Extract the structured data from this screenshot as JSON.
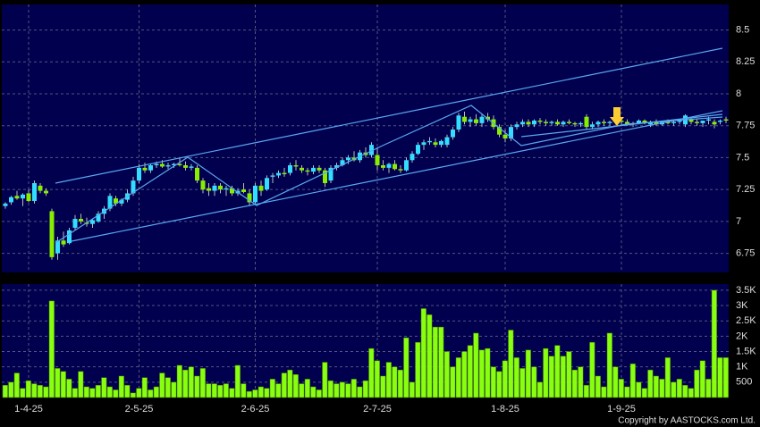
{
  "chart_data": {
    "type": "candlestick",
    "categories": [
      null,
      null,
      null,
      null,
      "1-4-25",
      null,
      null,
      null,
      null,
      null,
      null,
      null,
      null,
      null,
      null,
      null,
      null,
      null,
      null,
      null,
      null,
      null,
      null,
      "2-5-25",
      null,
      null,
      null,
      null,
      null,
      null,
      null,
      null,
      null,
      null,
      null,
      null,
      null,
      null,
      null,
      null,
      null,
      null,
      null,
      "2-6-25",
      null,
      null,
      null,
      null,
      null,
      null,
      null,
      null,
      null,
      null,
      null,
      null,
      null,
      null,
      null,
      null,
      null,
      null,
      null,
      null,
      "2-7-25",
      null,
      null,
      null,
      null,
      null,
      null,
      null,
      null,
      null,
      null,
      null,
      null,
      null,
      null,
      null,
      null,
      null,
      null,
      null,
      null,
      null,
      "1-8-25",
      null,
      null,
      null,
      null,
      null,
      null,
      null,
      null,
      null,
      null,
      null,
      null,
      null,
      null,
      null,
      null,
      null,
      null,
      null,
      "1-9-25",
      null,
      null,
      null,
      null,
      null,
      null,
      null,
      null,
      null,
      null,
      null,
      null,
      null,
      null,
      null,
      null,
      null,
      null
    ],
    "candles": [
      [
        7.12,
        7.15,
        7.1,
        7.14
      ],
      [
        7.15,
        7.2,
        7.13,
        7.19
      ],
      [
        7.2,
        7.24,
        7.17,
        7.18
      ],
      [
        7.18,
        7.22,
        7.12,
        7.21
      ],
      [
        7.22,
        7.25,
        7.15,
        7.16
      ],
      [
        7.16,
        7.32,
        7.14,
        7.3
      ],
      [
        7.28,
        7.3,
        7.22,
        7.24
      ],
      [
        7.24,
        7.26,
        7.2,
        7.22
      ],
      [
        7.08,
        7.1,
        6.7,
        6.72
      ],
      [
        6.75,
        6.88,
        6.7,
        6.85
      ],
      [
        6.85,
        6.92,
        6.8,
        6.82
      ],
      [
        6.83,
        6.95,
        6.82,
        6.93
      ],
      [
        6.95,
        7.05,
        6.93,
        7.02
      ],
      [
        7.02,
        7.06,
        6.98,
        7.0
      ],
      [
        6.99,
        7.03,
        6.96,
        6.98
      ],
      [
        6.98,
        7.02,
        6.95,
        7.01
      ],
      [
        7.0,
        7.08,
        6.99,
        7.06
      ],
      [
        7.06,
        7.12,
        7.02,
        7.1
      ],
      [
        7.1,
        7.22,
        7.08,
        7.2
      ],
      [
        7.18,
        7.2,
        7.12,
        7.14
      ],
      [
        7.14,
        7.18,
        7.12,
        7.17
      ],
      [
        7.17,
        7.25,
        7.15,
        7.22
      ],
      [
        7.22,
        7.35,
        7.2,
        7.32
      ],
      [
        7.32,
        7.45,
        7.3,
        7.42
      ],
      [
        7.42,
        7.46,
        7.38,
        7.4
      ],
      [
        7.4,
        7.45,
        7.38,
        7.44
      ],
      [
        7.44,
        7.47,
        7.42,
        7.45
      ],
      [
        7.45,
        7.48,
        7.42,
        7.43
      ],
      [
        7.43,
        7.46,
        7.41,
        7.44
      ],
      [
        7.44,
        7.46,
        7.42,
        7.45
      ],
      [
        7.45,
        7.5,
        7.43,
        7.44
      ],
      [
        7.44,
        7.47,
        7.4,
        7.42
      ],
      [
        7.42,
        7.45,
        7.4,
        7.43
      ],
      [
        7.42,
        7.44,
        7.3,
        7.32
      ],
      [
        7.32,
        7.34,
        7.22,
        7.25
      ],
      [
        7.26,
        7.3,
        7.2,
        7.24
      ],
      [
        7.24,
        7.3,
        7.2,
        7.28
      ],
      [
        7.28,
        7.3,
        7.22,
        7.25
      ],
      [
        7.25,
        7.28,
        7.2,
        7.26
      ],
      [
        7.26,
        7.28,
        7.2,
        7.22
      ],
      [
        7.22,
        7.26,
        7.2,
        7.24
      ],
      [
        7.25,
        7.3,
        7.22,
        7.23
      ],
      [
        7.22,
        7.25,
        7.12,
        7.15
      ],
      [
        7.15,
        7.3,
        7.14,
        7.28
      ],
      [
        7.28,
        7.32,
        7.2,
        7.24
      ],
      [
        7.25,
        7.36,
        7.24,
        7.34
      ],
      [
        7.35,
        7.38,
        7.3,
        7.36
      ],
      [
        7.36,
        7.4,
        7.34,
        7.38
      ],
      [
        7.38,
        7.42,
        7.35,
        7.37
      ],
      [
        7.38,
        7.46,
        7.36,
        7.44
      ],
      [
        7.44,
        7.48,
        7.4,
        7.43
      ],
      [
        7.42,
        7.44,
        7.38,
        7.4
      ],
      [
        7.4,
        7.42,
        7.36,
        7.39
      ],
      [
        7.39,
        7.44,
        7.37,
        7.42
      ],
      [
        7.42,
        7.44,
        7.38,
        7.4
      ],
      [
        7.4,
        7.42,
        7.27,
        7.3
      ],
      [
        7.32,
        7.44,
        7.3,
        7.42
      ],
      [
        7.42,
        7.46,
        7.4,
        7.44
      ],
      [
        7.44,
        7.5,
        7.43,
        7.48
      ],
      [
        7.48,
        7.52,
        7.45,
        7.5
      ],
      [
        7.5,
        7.55,
        7.47,
        7.48
      ],
      [
        7.48,
        7.56,
        7.46,
        7.54
      ],
      [
        7.54,
        7.58,
        7.5,
        7.52
      ],
      [
        7.52,
        7.62,
        7.5,
        7.6
      ],
      [
        7.52,
        7.58,
        7.4,
        7.44
      ],
      [
        7.44,
        7.48,
        7.4,
        7.42
      ],
      [
        7.42,
        7.46,
        7.38,
        7.45
      ],
      [
        7.45,
        7.48,
        7.4,
        7.41
      ],
      [
        7.41,
        7.44,
        7.38,
        7.4
      ],
      [
        7.4,
        7.5,
        7.39,
        7.48
      ],
      [
        7.48,
        7.55,
        7.46,
        7.53
      ],
      [
        7.53,
        7.62,
        7.52,
        7.6
      ],
      [
        7.6,
        7.64,
        7.56,
        7.62
      ],
      [
        7.62,
        7.66,
        7.6,
        7.63
      ],
      [
        7.62,
        7.65,
        7.58,
        7.6
      ],
      [
        7.6,
        7.64,
        7.58,
        7.63
      ],
      [
        7.6,
        7.68,
        7.58,
        7.66
      ],
      [
        7.66,
        7.74,
        7.64,
        7.72
      ],
      [
        7.72,
        7.85,
        7.7,
        7.83
      ],
      [
        7.82,
        7.86,
        7.76,
        7.78
      ],
      [
        7.78,
        7.82,
        7.74,
        7.8
      ],
      [
        7.8,
        7.84,
        7.75,
        7.77
      ],
      [
        7.77,
        7.84,
        7.74,
        7.82
      ],
      [
        7.82,
        7.85,
        7.78,
        7.8
      ],
      [
        7.8,
        7.83,
        7.72,
        7.74
      ],
      [
        7.74,
        7.76,
        7.66,
        7.68
      ],
      [
        7.68,
        7.72,
        7.62,
        7.65
      ],
      [
        7.65,
        7.76,
        7.63,
        7.74
      ],
      [
        7.74,
        7.78,
        7.72,
        7.76
      ],
      [
        7.76,
        7.8,
        7.74,
        7.78
      ],
      [
        7.78,
        7.8,
        7.74,
        7.76
      ],
      [
        7.76,
        7.8,
        7.74,
        7.79
      ],
      [
        7.79,
        7.81,
        7.76,
        7.78
      ],
      [
        7.78,
        7.8,
        7.75,
        7.77
      ],
      [
        7.77,
        7.79,
        7.75,
        7.78
      ],
      [
        7.78,
        7.8,
        7.75,
        7.76
      ],
      [
        7.76,
        7.79,
        7.74,
        7.78
      ],
      [
        7.78,
        7.8,
        7.76,
        7.77
      ],
      [
        7.77,
        7.78,
        7.74,
        7.76
      ],
      [
        7.76,
        7.78,
        7.74,
        7.77
      ],
      [
        7.82,
        7.84,
        7.72,
        7.74
      ],
      [
        7.74,
        7.78,
        7.72,
        7.76
      ],
      [
        7.76,
        7.79,
        7.74,
        7.78
      ],
      [
        7.78,
        7.8,
        7.75,
        7.77
      ],
      [
        7.77,
        7.79,
        7.75,
        7.78
      ],
      [
        7.78,
        7.8,
        7.76,
        7.79
      ],
      [
        7.79,
        7.81,
        7.76,
        7.78
      ],
      [
        7.78,
        7.8,
        7.75,
        7.76
      ],
      [
        7.76,
        7.78,
        7.74,
        7.77
      ],
      [
        7.77,
        7.8,
        7.76,
        7.79
      ],
      [
        7.79,
        7.8,
        7.76,
        7.77
      ],
      [
        7.76,
        7.79,
        7.74,
        7.78
      ],
      [
        7.78,
        7.8,
        7.75,
        7.76
      ],
      [
        7.76,
        7.79,
        7.75,
        7.78
      ],
      [
        7.78,
        7.8,
        7.76,
        7.77
      ],
      [
        7.77,
        7.79,
        7.75,
        7.78
      ],
      [
        7.78,
        7.8,
        7.76,
        7.79
      ],
      [
        7.76,
        7.84,
        7.74,
        7.83
      ],
      [
        7.8,
        7.82,
        7.76,
        7.78
      ],
      [
        7.78,
        7.8,
        7.75,
        7.77
      ],
      [
        7.77,
        7.79,
        7.74,
        7.79
      ],
      [
        7.79,
        7.82,
        7.76,
        7.8
      ],
      [
        7.78,
        7.8,
        7.73,
        7.76
      ],
      [
        7.78,
        7.8,
        7.76,
        7.79
      ],
      [
        7.8,
        7.82,
        7.77,
        7.79
      ]
    ],
    "volume": [
      400,
      500,
      800,
      300,
      550,
      450,
      400,
      350,
      3150,
      950,
      850,
      600,
      300,
      850,
      350,
      300,
      400,
      650,
      350,
      250,
      700,
      400,
      150,
      300,
      650,
      250,
      350,
      800,
      650,
      500,
      1050,
      900,
      1000,
      700,
      950,
      450,
      450,
      400,
      450,
      300,
      1050,
      450,
      200,
      250,
      350,
      300,
      600,
      450,
      800,
      900,
      750,
      450,
      600,
      350,
      250,
      1150,
      550,
      450,
      500,
      450,
      600,
      350,
      550,
      1600,
      1200,
      700,
      1150,
      1000,
      900,
      1950,
      500,
      1800,
      2900,
      2700,
      2300,
      2300,
      1500,
      1000,
      1300,
      1500,
      1700,
      2100,
      1550,
      1600,
      1000,
      850,
      1200,
      2200,
      1300,
      950,
      1550,
      1000,
      500,
      1600,
      1350,
      1700,
      1350,
      1500,
      900,
      1000,
      400,
      1800,
      700,
      350,
      2100,
      1000,
      600,
      350,
      1100,
      500,
      300,
      900,
      700,
      600,
      1300,
      500,
      600,
      400,
      300,
      900,
      1200,
      600,
      3500,
      1300,
      1300
    ],
    "ylim": [
      6.6,
      8.7
    ],
    "yticks": [
      6.75,
      7,
      7.25,
      7.5,
      7.75,
      8,
      8.25,
      8.5
    ],
    "volume_ylim": [
      0,
      3700
    ],
    "volume_yticks": [
      500,
      {
        "value": 1000,
        "label": "1K"
      },
      {
        "value": 1500,
        "label": "1.5K"
      },
      {
        "value": 2000,
        "label": "2K"
      },
      {
        "value": 2500,
        "label": "2.5K"
      },
      {
        "value": 3000,
        "label": "3K"
      },
      {
        "value": 3500,
        "label": "3.5K"
      }
    ],
    "up_color": "#33ddff",
    "down_color": "#88ee00",
    "volume_color": "#88ff11",
    "grid": true,
    "copyright": "Copyright by AASTOCKS.com Ltd."
  }
}
